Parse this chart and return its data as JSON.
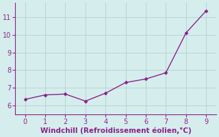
{
  "x": [
    0,
    1,
    2,
    3,
    4,
    5,
    6,
    7,
    8,
    9
  ],
  "y": [
    6.35,
    6.6,
    6.65,
    6.25,
    6.7,
    7.3,
    7.5,
    7.85,
    10.1,
    11.35
  ],
  "line_color": "#882288",
  "marker": "D",
  "marker_size": 2.5,
  "line_width": 1.0,
  "xlabel": "Windchill (Refroidissement éolien,°C)",
  "xlabel_color": "#882288",
  "xlabel_fontsize": 7.5,
  "xlim": [
    -0.5,
    9.5
  ],
  "ylim": [
    5.5,
    11.8
  ],
  "xticks": [
    0,
    1,
    2,
    3,
    4,
    5,
    6,
    7,
    8,
    9
  ],
  "yticks": [
    6,
    7,
    8,
    9,
    10,
    11
  ],
  "background_color": "#d6eded",
  "grid_color": "#b8d4d4",
  "tick_color": "#882288",
  "tick_fontsize": 7,
  "spine_color": "#882288"
}
